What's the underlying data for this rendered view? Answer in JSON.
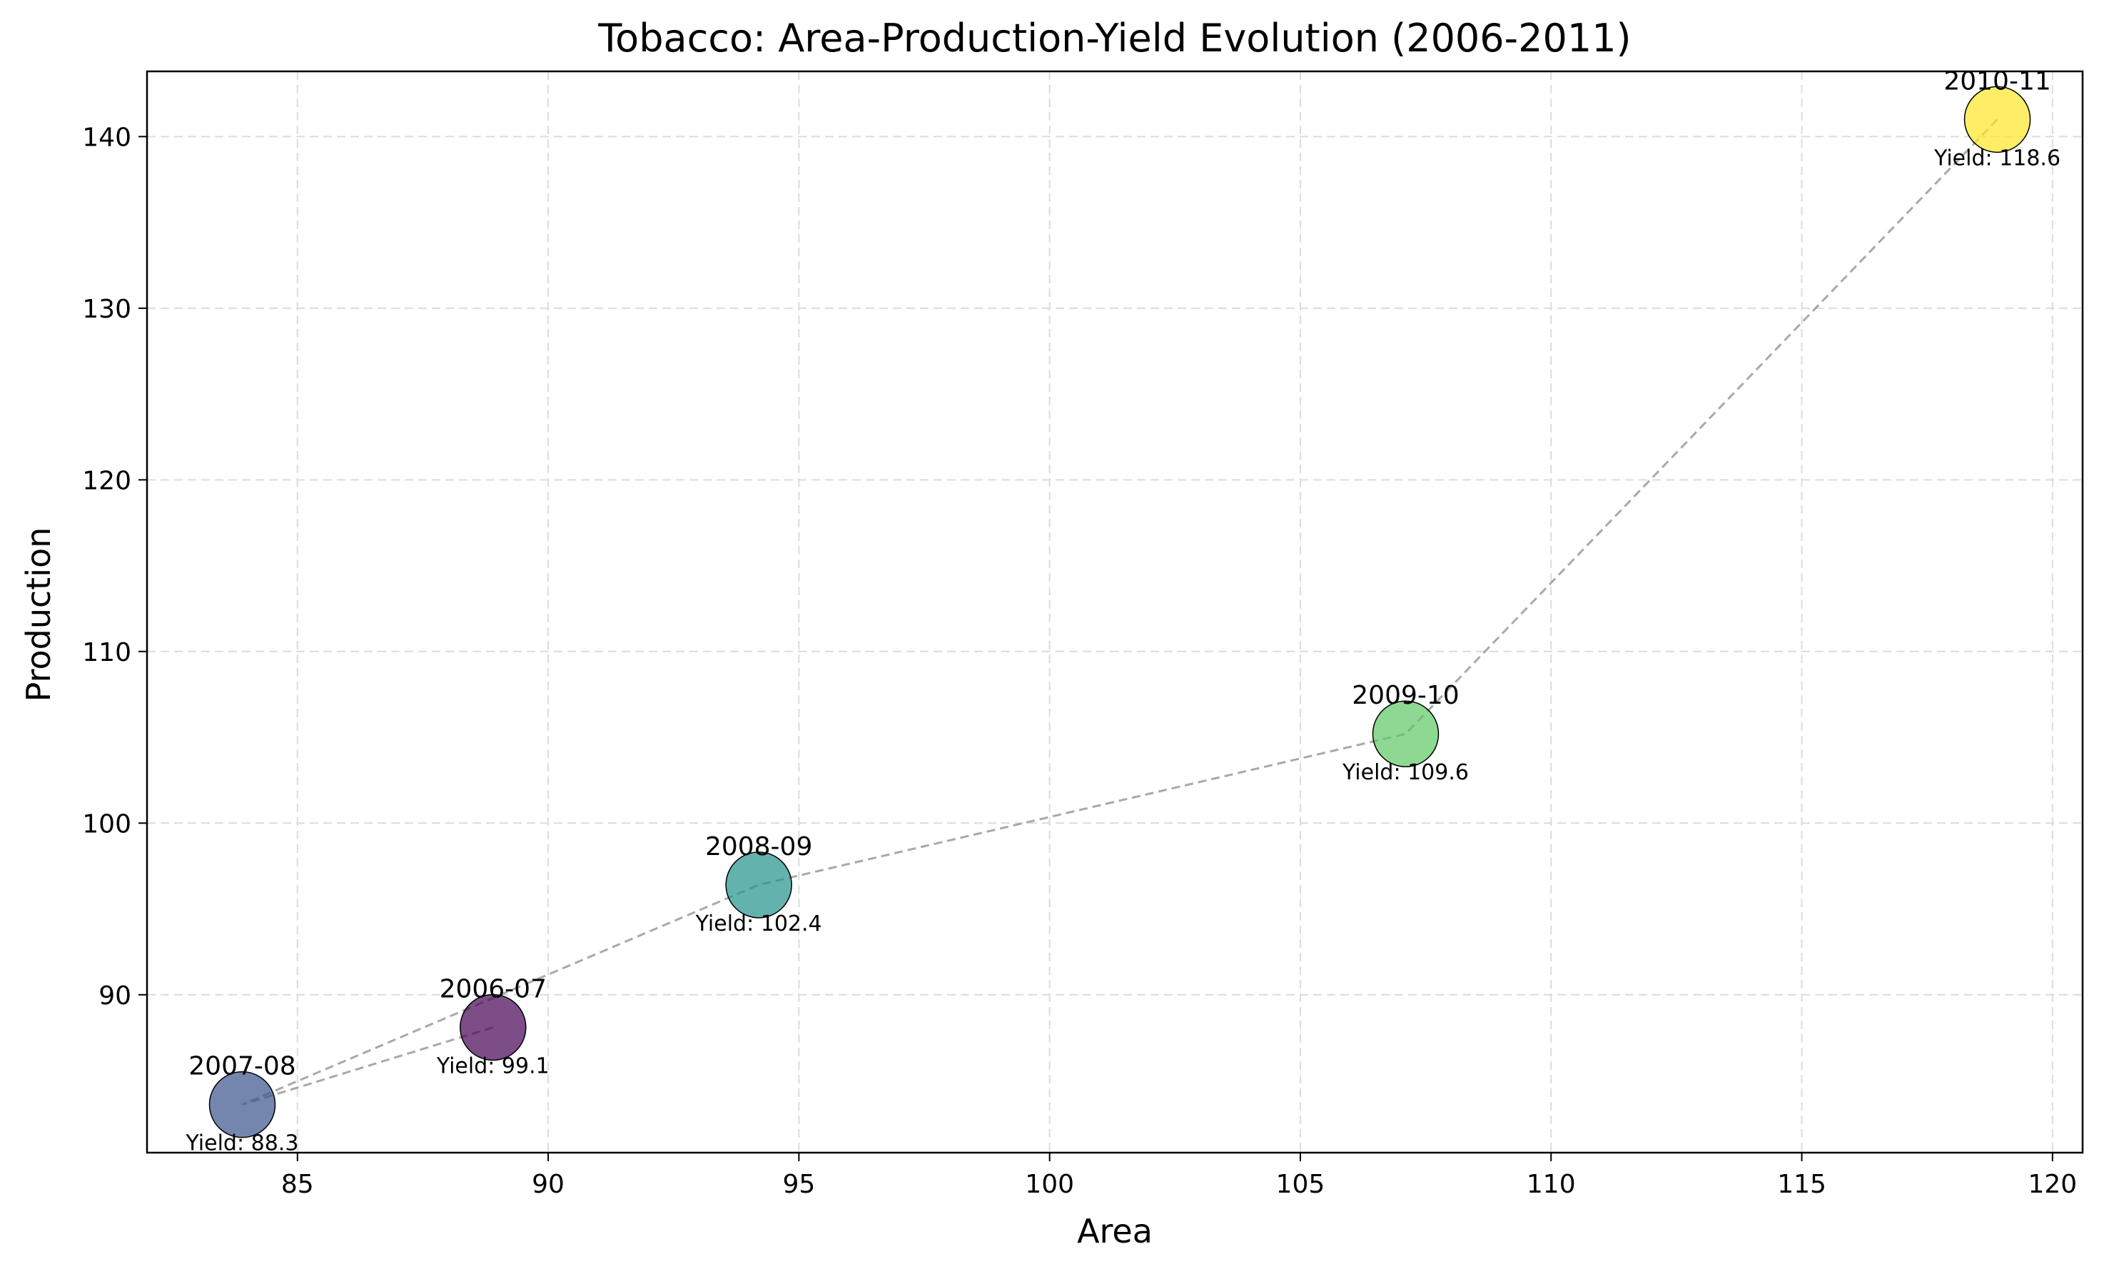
{
  "chart_data": {
    "type": "scatter",
    "title": "Tobacco: Area-Production-Yield Evolution (2006-2011)",
    "xlabel": "Area",
    "ylabel": "Production",
    "xlim": [
      82,
      120.6
    ],
    "ylim": [
      80.8,
      143.8
    ],
    "xticks": [
      85,
      90,
      95,
      100,
      105,
      110,
      115,
      120
    ],
    "yticks": [
      90,
      100,
      110,
      120,
      130,
      140
    ],
    "grid": true,
    "connector_style": "dashed",
    "points": [
      {
        "label": "2006-07",
        "x": 88.9,
        "y": 88.1,
        "yield_text": "Yield: 99.1",
        "color": "#440154"
      },
      {
        "label": "2007-08",
        "x": 83.9,
        "y": 83.6,
        "yield_text": "Yield: 88.3",
        "color": "#3b528b"
      },
      {
        "label": "2008-09",
        "x": 94.2,
        "y": 96.4,
        "yield_text": "Yield: 102.4",
        "color": "#21918c"
      },
      {
        "label": "2009-10",
        "x": 107.1,
        "y": 105.2,
        "yield_text": "Yield: 109.6",
        "color": "#5ec962"
      },
      {
        "label": "2010-11",
        "x": 118.9,
        "y": 141.0,
        "yield_text": "Yield: 118.6",
        "color": "#fde725"
      }
    ]
  }
}
